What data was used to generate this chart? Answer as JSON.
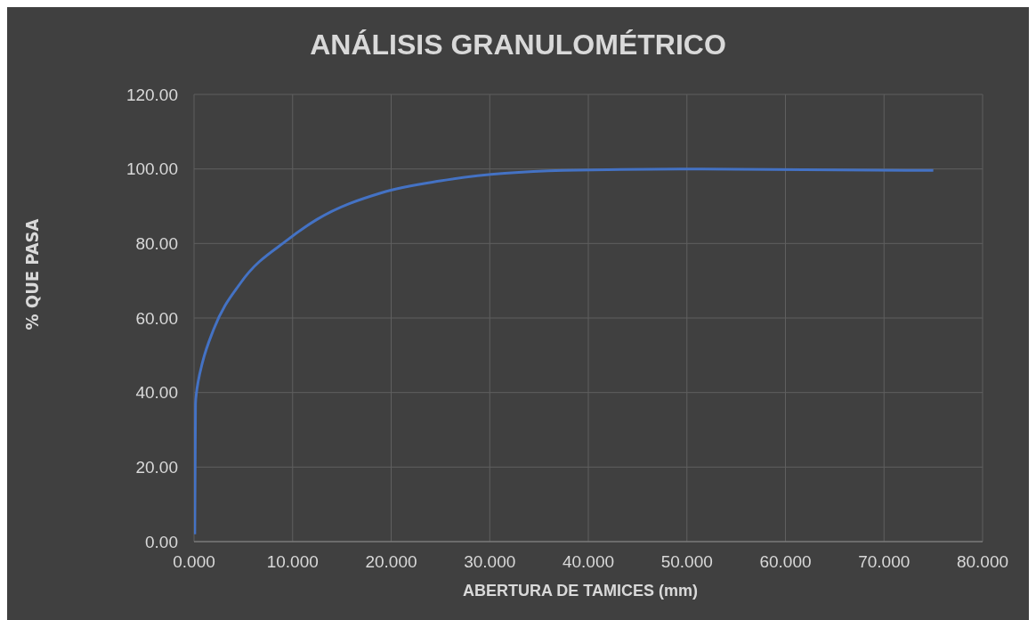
{
  "chart_data": {
    "type": "line",
    "title": "ANÁLISIS GRANULOMÉTRICO",
    "xlabel": "ABERTURA DE TAMICES (mm)",
    "ylabel": "% QUE PASA",
    "x": [
      0.075,
      0.15,
      0.25,
      0.425,
      0.85,
      2,
      4.75,
      9.5,
      12.5,
      19,
      25,
      37.5,
      50,
      75
    ],
    "series": [
      {
        "color": "#4472c4",
        "values": [
          2,
          37,
          40,
          43,
          48,
          57,
          69.5,
          81,
          86.5,
          93.6,
          96.8,
          99.6,
          100,
          99.6
        ]
      }
    ],
    "xlim": [
      0,
      80
    ],
    "xticks": [
      {
        "value": 0,
        "label": "0.000"
      },
      {
        "value": 10,
        "label": "10.000"
      },
      {
        "value": 20,
        "label": "20.000"
      },
      {
        "value": 30,
        "label": "30.000"
      },
      {
        "value": 40,
        "label": "40.000"
      },
      {
        "value": 50,
        "label": "50.000"
      },
      {
        "value": 60,
        "label": "60.000"
      },
      {
        "value": 70,
        "label": "70.000"
      },
      {
        "value": 80,
        "label": "80.000"
      }
    ],
    "ylim": [
      0,
      120
    ],
    "yticks": [
      {
        "value": 0,
        "label": "0.00"
      },
      {
        "value": 20,
        "label": "20.00"
      },
      {
        "value": 40,
        "label": "40.00"
      },
      {
        "value": 60,
        "label": "60.00"
      },
      {
        "value": 80,
        "label": "80.00"
      },
      {
        "value": 100,
        "label": "100.00"
      },
      {
        "value": 120,
        "label": "120.00"
      }
    ],
    "grid": true,
    "legend": false,
    "marker": "none",
    "line_style": "solid"
  }
}
